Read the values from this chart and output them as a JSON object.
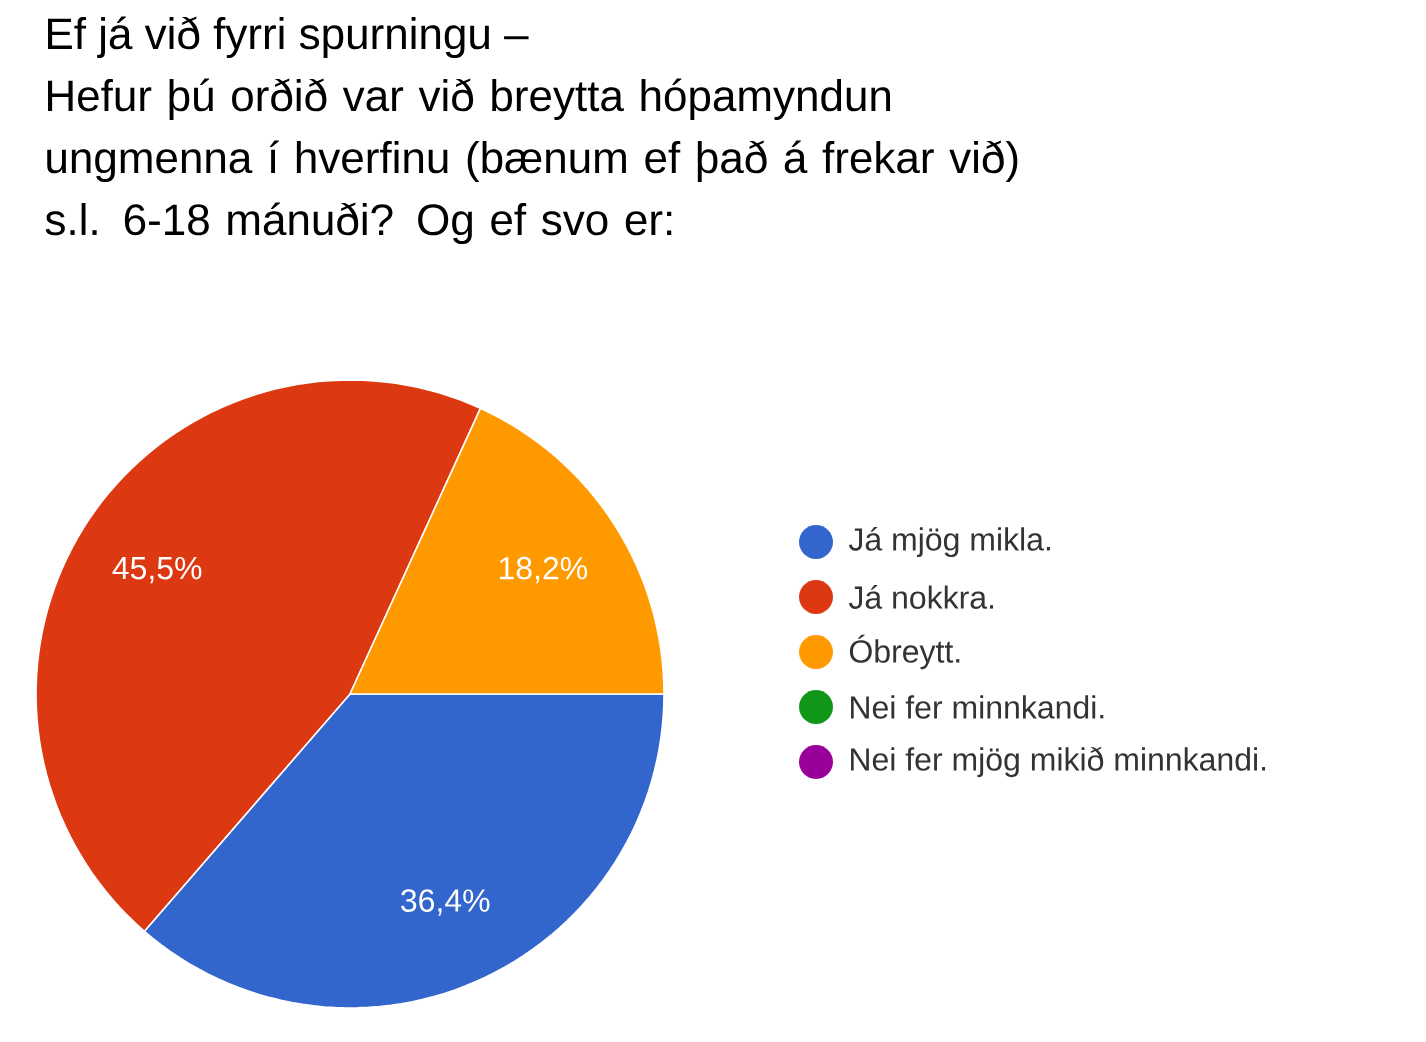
{
  "chart_data": {
    "type": "pie",
    "title": "Ef já við fyrri spurningu –",
    "subtitle": "Hefur þú orðið var við breytta hópamyndun ungmenna í hverfinu (bænum ef það á frekar við) s.l. 6-18 mánuði? Og ef svo er:",
    "categories": [
      "Já mjög mikla.",
      "Já nokkra.",
      "Óbreytt.",
      "Nei fer minnkandi.",
      "Nei fer mjög mikið minnkandi."
    ],
    "values": [
      36.4,
      45.5,
      18.2,
      0,
      0
    ],
    "colors": [
      "#3366cc",
      "#dc3912",
      "#ff9900",
      "#109618",
      "#990099"
    ],
    "value_labels": [
      "36,4%",
      "45,5%",
      "18,2%",
      null,
      null
    ],
    "legend": "right"
  }
}
